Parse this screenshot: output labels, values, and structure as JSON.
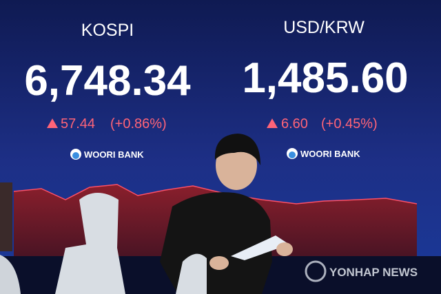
{
  "panels": [
    {
      "index": "KOSPI",
      "value": "6,748.34",
      "change": "57.44",
      "change_pct": "(+0.86%)",
      "bank": "WOORI BANK"
    },
    {
      "index": "USD/KRW",
      "value": "1,485.60",
      "change": "6.60",
      "change_pct": "(+0.45%)",
      "bank": "WOORI BANK"
    }
  ],
  "watermark": "YONHAP NEWS"
}
